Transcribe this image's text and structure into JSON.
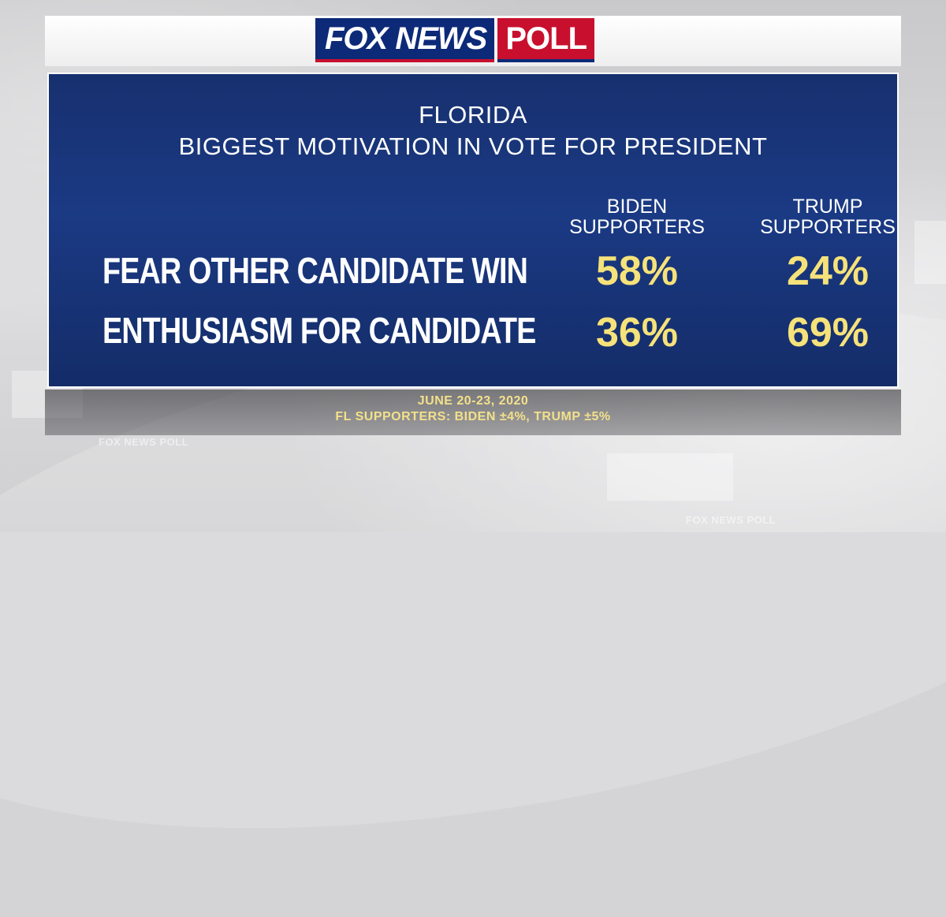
{
  "logo": {
    "fox_news": "FOX NEWS",
    "poll": "POLL"
  },
  "watermark_text": "FOX NEWS POLL",
  "chart_data": {
    "type": "table",
    "title": "FLORIDA",
    "subtitle": "BIGGEST MOTIVATION IN VOTE FOR PRESIDENT",
    "columns": [
      {
        "line1": "BIDEN",
        "line2": "SUPPORTERS"
      },
      {
        "line1": "TRUMP",
        "line2": "SUPPORTERS"
      }
    ],
    "rows": [
      {
        "label": "FEAR OTHER CANDIDATE WIN",
        "values": [
          "58%",
          "24%"
        ]
      },
      {
        "label": "ENTHUSIASM FOR CANDIDATE",
        "values": [
          "36%",
          "69%"
        ]
      }
    ],
    "notes": [
      "JUNE 20-23, 2020",
      "FL SUPPORTERS: BIDEN ±4%, TRUMP ±5%"
    ]
  },
  "colors": {
    "panel": "#1b3a84",
    "value_text": "#f6e27a",
    "fox_blue": "#0d2a78",
    "poll_red": "#c8102e"
  }
}
